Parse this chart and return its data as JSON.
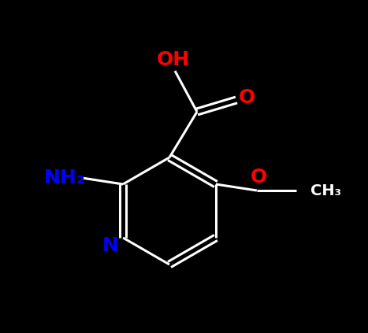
{
  "background_color": "#000000",
  "bond_color": "#ffffff",
  "bond_width": 2.2,
  "fig_width": 4.67,
  "fig_height": 4.23,
  "dpi": 100,
  "label_OH": {
    "text": "OH",
    "color": "#ff0000",
    "fontsize": 18
  },
  "label_NH2": {
    "text": "NH₂",
    "color": "#0000ff",
    "fontsize": 18
  },
  "label_O1": {
    "text": "O",
    "color": "#ff0000",
    "fontsize": 18
  },
  "label_O2": {
    "text": "O",
    "color": "#ff0000",
    "fontsize": 18
  },
  "label_N": {
    "text": "N",
    "color": "#0000ff",
    "fontsize": 18
  }
}
